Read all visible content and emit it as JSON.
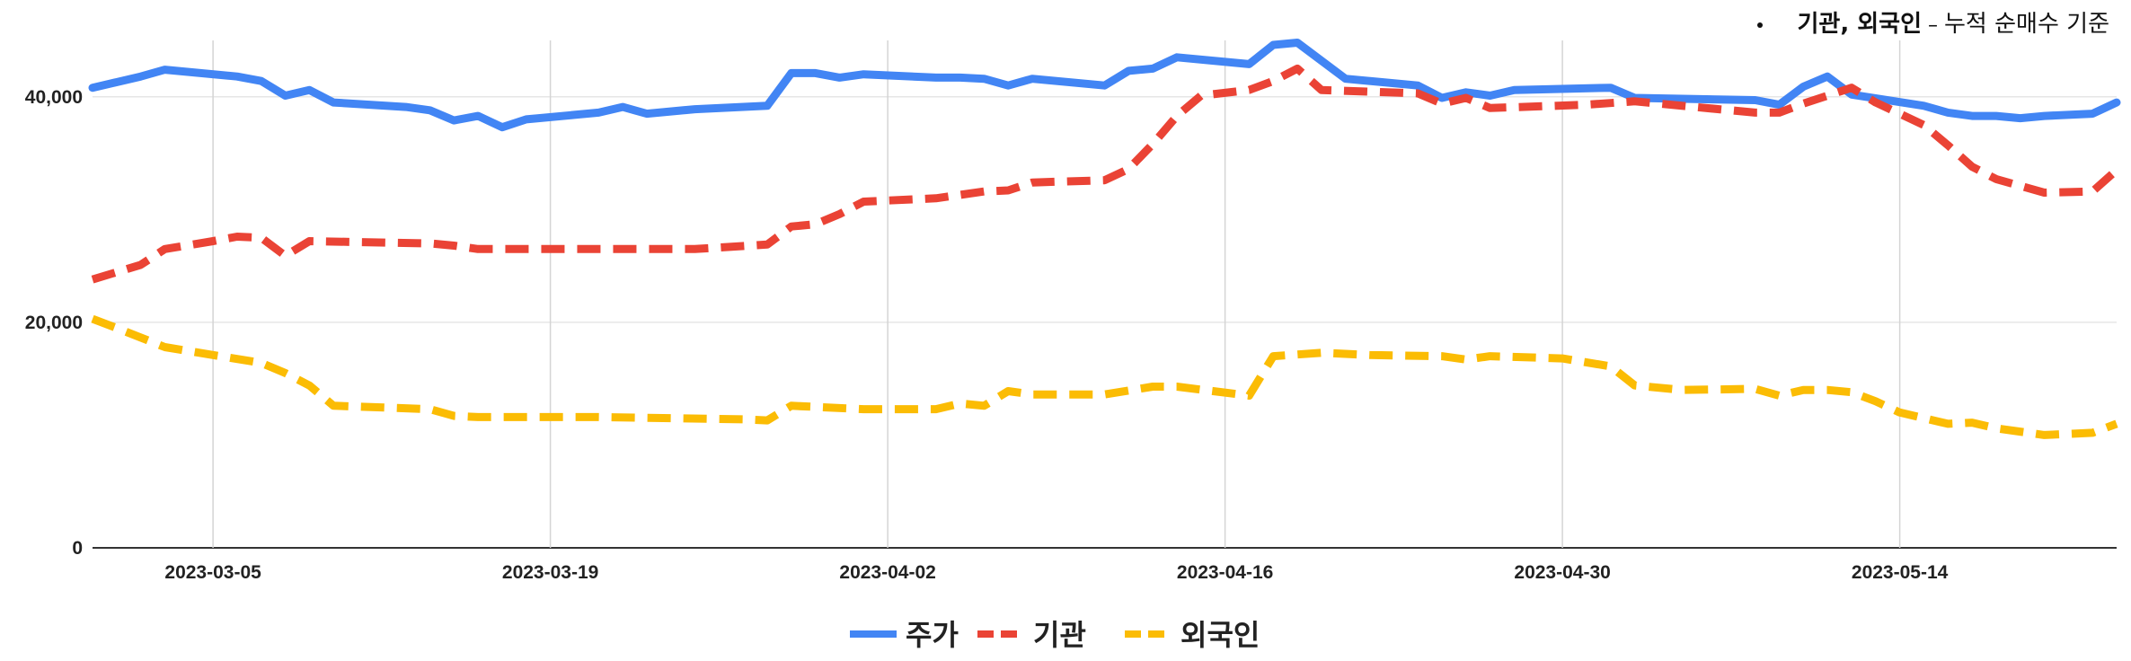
{
  "note": {
    "label": "기관, 외국인",
    "dash": " – ",
    "text": "누적 순매수 기준"
  },
  "chart_data": {
    "type": "line",
    "xlabel": "",
    "ylabel": "",
    "ylim": [
      0,
      45000
    ],
    "yticks": [
      0,
      20000,
      40000
    ],
    "ytick_labels": [
      "0",
      "20,000",
      "40,000"
    ],
    "xticks": [
      "2023-03-05",
      "2023-03-19",
      "2023-04-02",
      "2023-04-16",
      "2023-04-30",
      "2023-05-14"
    ],
    "x_range": [
      "2023-02-28",
      "2023-05-23"
    ],
    "grid": true,
    "legend_position": "bottom",
    "series": [
      {
        "name": "주가",
        "color": "#4285F4",
        "dash": "solid",
        "points": [
          [
            "2023-02-28",
            40800
          ],
          [
            "2023-03-01",
            41300
          ],
          [
            "2023-03-02",
            41800
          ],
          [
            "2023-03-03",
            42400
          ],
          [
            "2023-03-06",
            41800
          ],
          [
            "2023-03-07",
            41400
          ],
          [
            "2023-03-08",
            40100
          ],
          [
            "2023-03-09",
            40600
          ],
          [
            "2023-03-10",
            39500
          ],
          [
            "2023-03-13",
            39100
          ],
          [
            "2023-03-14",
            38800
          ],
          [
            "2023-03-15",
            37900
          ],
          [
            "2023-03-16",
            38300
          ],
          [
            "2023-03-17",
            37300
          ],
          [
            "2023-03-18",
            38000
          ],
          [
            "2023-03-20",
            38400
          ],
          [
            "2023-03-21",
            38600
          ],
          [
            "2023-03-22",
            39100
          ],
          [
            "2023-03-23",
            38500
          ],
          [
            "2023-03-25",
            38900
          ],
          [
            "2023-03-28",
            39200
          ],
          [
            "2023-03-29",
            42100
          ],
          [
            "2023-03-30",
            42100
          ],
          [
            "2023-03-31",
            41700
          ],
          [
            "2023-04-01",
            42000
          ],
          [
            "2023-04-04",
            41700
          ],
          [
            "2023-04-05",
            41700
          ],
          [
            "2023-04-06",
            41600
          ],
          [
            "2023-04-07",
            41000
          ],
          [
            "2023-04-08",
            41600
          ],
          [
            "2023-04-11",
            41000
          ],
          [
            "2023-04-12",
            42300
          ],
          [
            "2023-04-13",
            42500
          ],
          [
            "2023-04-14",
            43500
          ],
          [
            "2023-04-17",
            42900
          ],
          [
            "2023-04-18",
            44600
          ],
          [
            "2023-04-19",
            44800
          ],
          [
            "2023-04-21",
            41600
          ],
          [
            "2023-04-24",
            41000
          ],
          [
            "2023-04-25",
            39900
          ],
          [
            "2023-04-26",
            40400
          ],
          [
            "2023-04-27",
            40100
          ],
          [
            "2023-04-28",
            40600
          ],
          [
            "2023-05-02",
            40800
          ],
          [
            "2023-05-03",
            39900
          ],
          [
            "2023-05-08",
            39700
          ],
          [
            "2023-05-09",
            39300
          ],
          [
            "2023-05-10",
            40900
          ],
          [
            "2023-05-11",
            41800
          ],
          [
            "2023-05-12",
            40200
          ],
          [
            "2023-05-15",
            39200
          ],
          [
            "2023-05-16",
            38600
          ],
          [
            "2023-05-17",
            38300
          ],
          [
            "2023-05-18",
            38300
          ],
          [
            "2023-05-19",
            38100
          ],
          [
            "2023-05-20",
            38300
          ],
          [
            "2023-05-22",
            38500
          ],
          [
            "2023-05-23",
            39500
          ]
        ]
      },
      {
        "name": "기관",
        "color": "#EA4335",
        "dash": "dashed",
        "points": [
          [
            "2023-02-28",
            23800
          ],
          [
            "2023-03-02",
            25100
          ],
          [
            "2023-03-03",
            26500
          ],
          [
            "2023-03-05",
            27200
          ],
          [
            "2023-03-06",
            27600
          ],
          [
            "2023-03-07",
            27500
          ],
          [
            "2023-03-08",
            25900
          ],
          [
            "2023-03-09",
            27200
          ],
          [
            "2023-03-14",
            27000
          ],
          [
            "2023-03-15",
            26800
          ],
          [
            "2023-03-16",
            26500
          ],
          [
            "2023-03-23",
            26500
          ],
          [
            "2023-03-25",
            26500
          ],
          [
            "2023-03-28",
            26900
          ],
          [
            "2023-03-29",
            28500
          ],
          [
            "2023-03-30",
            28700
          ],
          [
            "2023-03-31",
            29600
          ],
          [
            "2023-04-01",
            30700
          ],
          [
            "2023-04-04",
            31000
          ],
          [
            "2023-04-06",
            31600
          ],
          [
            "2023-04-07",
            31700
          ],
          [
            "2023-04-08",
            32400
          ],
          [
            "2023-04-11",
            32600
          ],
          [
            "2023-04-12",
            33600
          ],
          [
            "2023-04-13",
            35800
          ],
          [
            "2023-04-14",
            38300
          ],
          [
            "2023-04-15",
            40100
          ],
          [
            "2023-04-17",
            40600
          ],
          [
            "2023-04-18",
            41400
          ],
          [
            "2023-04-19",
            42500
          ],
          [
            "2023-04-20",
            40600
          ],
          [
            "2023-04-24",
            40300
          ],
          [
            "2023-04-25",
            39400
          ],
          [
            "2023-04-26",
            39900
          ],
          [
            "2023-04-27",
            39000
          ],
          [
            "2023-05-01",
            39300
          ],
          [
            "2023-05-03",
            39600
          ],
          [
            "2023-05-08",
            38600
          ],
          [
            "2023-05-09",
            38600
          ],
          [
            "2023-05-10",
            39400
          ],
          [
            "2023-05-12",
            40800
          ],
          [
            "2023-05-13",
            39500
          ],
          [
            "2023-05-15",
            37500
          ],
          [
            "2023-05-16",
            35700
          ],
          [
            "2023-05-17",
            33800
          ],
          [
            "2023-05-18",
            32700
          ],
          [
            "2023-05-20",
            31500
          ],
          [
            "2023-05-22",
            31600
          ],
          [
            "2023-05-23",
            33500
          ]
        ]
      },
      {
        "name": "외국인",
        "color": "#FBBC04",
        "dash": "dashed",
        "points": [
          [
            "2023-02-28",
            20300
          ],
          [
            "2023-03-01",
            19500
          ],
          [
            "2023-03-03",
            17800
          ],
          [
            "2023-03-05",
            17100
          ],
          [
            "2023-03-07",
            16400
          ],
          [
            "2023-03-08",
            15500
          ],
          [
            "2023-03-09",
            14400
          ],
          [
            "2023-03-10",
            12600
          ],
          [
            "2023-03-14",
            12300
          ],
          [
            "2023-03-15",
            11700
          ],
          [
            "2023-03-16",
            11600
          ],
          [
            "2023-03-21",
            11600
          ],
          [
            "2023-03-27",
            11400
          ],
          [
            "2023-03-28",
            11300
          ],
          [
            "2023-03-29",
            12600
          ],
          [
            "2023-04-01",
            12300
          ],
          [
            "2023-04-04",
            12300
          ],
          [
            "2023-04-05",
            12800
          ],
          [
            "2023-04-06",
            12600
          ],
          [
            "2023-04-07",
            13900
          ],
          [
            "2023-04-08",
            13600
          ],
          [
            "2023-04-11",
            13600
          ],
          [
            "2023-04-13",
            14300
          ],
          [
            "2023-04-14",
            14300
          ],
          [
            "2023-04-17",
            13500
          ],
          [
            "2023-04-18",
            17000
          ],
          [
            "2023-04-20",
            17300
          ],
          [
            "2023-04-22",
            17100
          ],
          [
            "2023-04-25",
            17000
          ],
          [
            "2023-04-26",
            16700
          ],
          [
            "2023-04-27",
            17000
          ],
          [
            "2023-04-30",
            16800
          ],
          [
            "2023-05-02",
            16100
          ],
          [
            "2023-05-03",
            14400
          ],
          [
            "2023-05-05",
            14000
          ],
          [
            "2023-05-08",
            14100
          ],
          [
            "2023-05-09",
            13500
          ],
          [
            "2023-05-10",
            14000
          ],
          [
            "2023-05-11",
            14000
          ],
          [
            "2023-05-12",
            13800
          ],
          [
            "2023-05-13",
            13000
          ],
          [
            "2023-05-14",
            12000
          ],
          [
            "2023-05-16",
            11000
          ],
          [
            "2023-05-17",
            11100
          ],
          [
            "2023-05-18",
            10600
          ],
          [
            "2023-05-20",
            10000
          ],
          [
            "2023-05-22",
            10200
          ],
          [
            "2023-05-23",
            11000
          ]
        ]
      }
    ]
  }
}
